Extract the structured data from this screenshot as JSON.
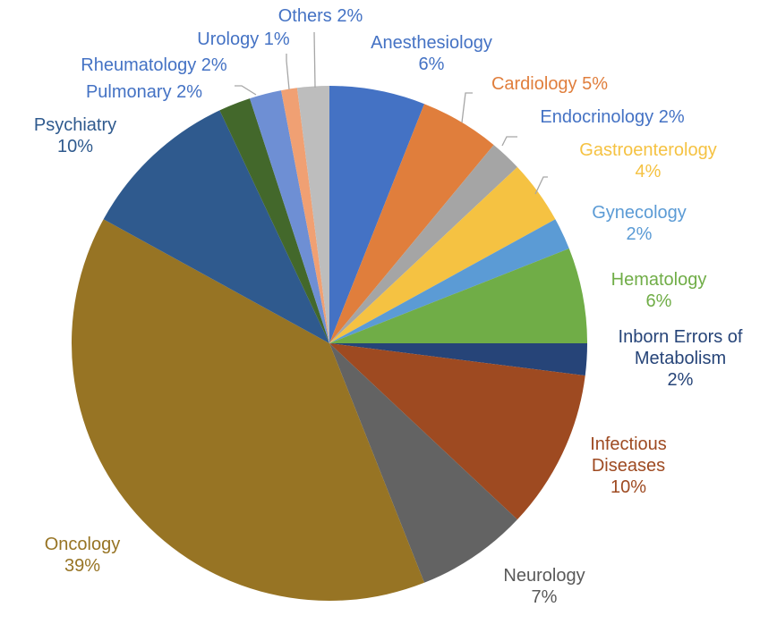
{
  "chart_data": {
    "type": "pie",
    "title": "",
    "legend": "none",
    "slices": [
      {
        "name": "Anesthesiology",
        "value": 6,
        "pct": "6%",
        "color": "#4472C4",
        "lines": [
          "Anesthesiology",
          "6%"
        ]
      },
      {
        "name": "Cardiology",
        "value": 5,
        "pct": "5%",
        "color": "#E07E3C",
        "lines": [
          "Cardiology  5%"
        ]
      },
      {
        "name": "Endocrinology",
        "value": 2,
        "pct": "2%",
        "color": "#A5A5A5",
        "lines": [
          "Endocrinology  2%"
        ]
      },
      {
        "name": "Gastroenterology",
        "value": 4,
        "pct": "4%",
        "color": "#F5C242",
        "lines": [
          "Gastroenterology",
          "4%"
        ]
      },
      {
        "name": "Gynecology",
        "value": 2,
        "pct": "2%",
        "color": "#5B9BD5",
        "lines": [
          "Gynecology",
          "2%"
        ]
      },
      {
        "name": "Hematology",
        "value": 6,
        "pct": "6%",
        "color": "#70AD47",
        "lines": [
          "Hematology",
          "6%"
        ]
      },
      {
        "name": "Inborn Errors of Metabolism",
        "value": 2,
        "pct": "2%",
        "color": "#264478",
        "lines": [
          "Inborn Errors of",
          "Metabolism",
          "2%"
        ]
      },
      {
        "name": "Infectious Diseases",
        "value": 10,
        "pct": "10%",
        "color": "#9E4A21",
        "lines": [
          "Infectious",
          "Diseases",
          "10%"
        ]
      },
      {
        "name": "Neurology",
        "value": 7,
        "pct": "7%",
        "color": "#636363",
        "lines": [
          "Neurology",
          "7%"
        ]
      },
      {
        "name": "Oncology",
        "value": 39,
        "pct": "39%",
        "color": "#977424",
        "lines": [
          "Oncology",
          "39%"
        ]
      },
      {
        "name": "Psychiatry",
        "value": 10,
        "pct": "10%",
        "color": "#2F5A8E",
        "lines": [
          "Psychiatry",
          "10%"
        ]
      },
      {
        "name": "Pulmonary",
        "value": 2,
        "pct": "2%",
        "color": "#43682B",
        "lines": [
          "Pulmonary  2%"
        ]
      },
      {
        "name": "Rheumatology",
        "value": 2,
        "pct": "2%",
        "color": "#6E8FD4",
        "lines": [
          "Rheumatology  2%"
        ]
      },
      {
        "name": "Urology",
        "value": 1,
        "pct": "1%",
        "color": "#F0A073",
        "lines": [
          "Urology  1%"
        ]
      },
      {
        "name": "Others",
        "value": 2,
        "pct": "2%",
        "color": "#BDBDBD",
        "lines": [
          "Others  2%"
        ]
      }
    ]
  }
}
